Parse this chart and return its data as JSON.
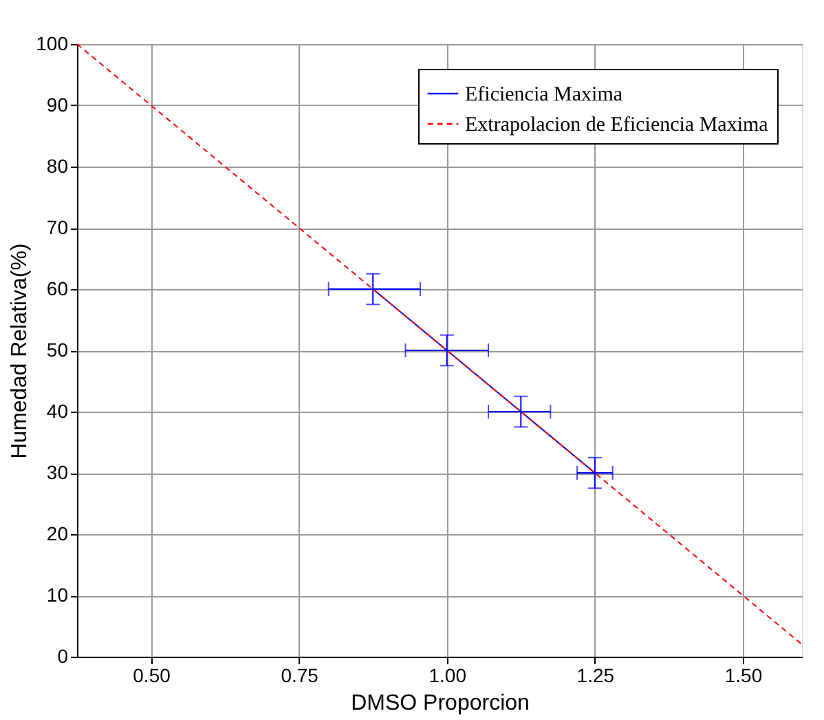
{
  "chart_data": {
    "type": "line",
    "xlabel": "DMSO Proporcion",
    "ylabel": "Humedad Relativa(%)",
    "xlim": [
      0.375,
      1.6
    ],
    "ylim": [
      0,
      100
    ],
    "xticks": [
      {
        "value": 0.5,
        "label": "0.50"
      },
      {
        "value": 0.75,
        "label": "0.75"
      },
      {
        "value": 1.0,
        "label": "1.00"
      },
      {
        "value": 1.25,
        "label": "1.25"
      },
      {
        "value": 1.5,
        "label": "1.50"
      }
    ],
    "yticks": [
      0,
      10,
      20,
      30,
      40,
      50,
      60,
      70,
      80,
      90,
      100
    ],
    "grid": true,
    "legend": "top right",
    "marker": "none",
    "series": [
      {
        "name": "Eficiencia Maxima",
        "color": "#0000ff",
        "line_style": "solid",
        "x": [
          0.875,
          1.0,
          1.125,
          1.25
        ],
        "values": [
          60,
          50,
          40,
          30
        ],
        "errors": [
          2.5,
          2.5,
          2.5,
          2.5
        ],
        "xerrors": [
          [
            0.8,
            0.955
          ],
          [
            0.93,
            1.07
          ],
          [
            1.07,
            1.175
          ],
          [
            1.22,
            1.28
          ]
        ]
      },
      {
        "name": "Extrapolacion de Eficiencia Maxima",
        "color": "#ff0000",
        "line_style": "dashed",
        "x": [
          0.375,
          1.6
        ],
        "values": [
          100,
          2
        ]
      }
    ]
  }
}
